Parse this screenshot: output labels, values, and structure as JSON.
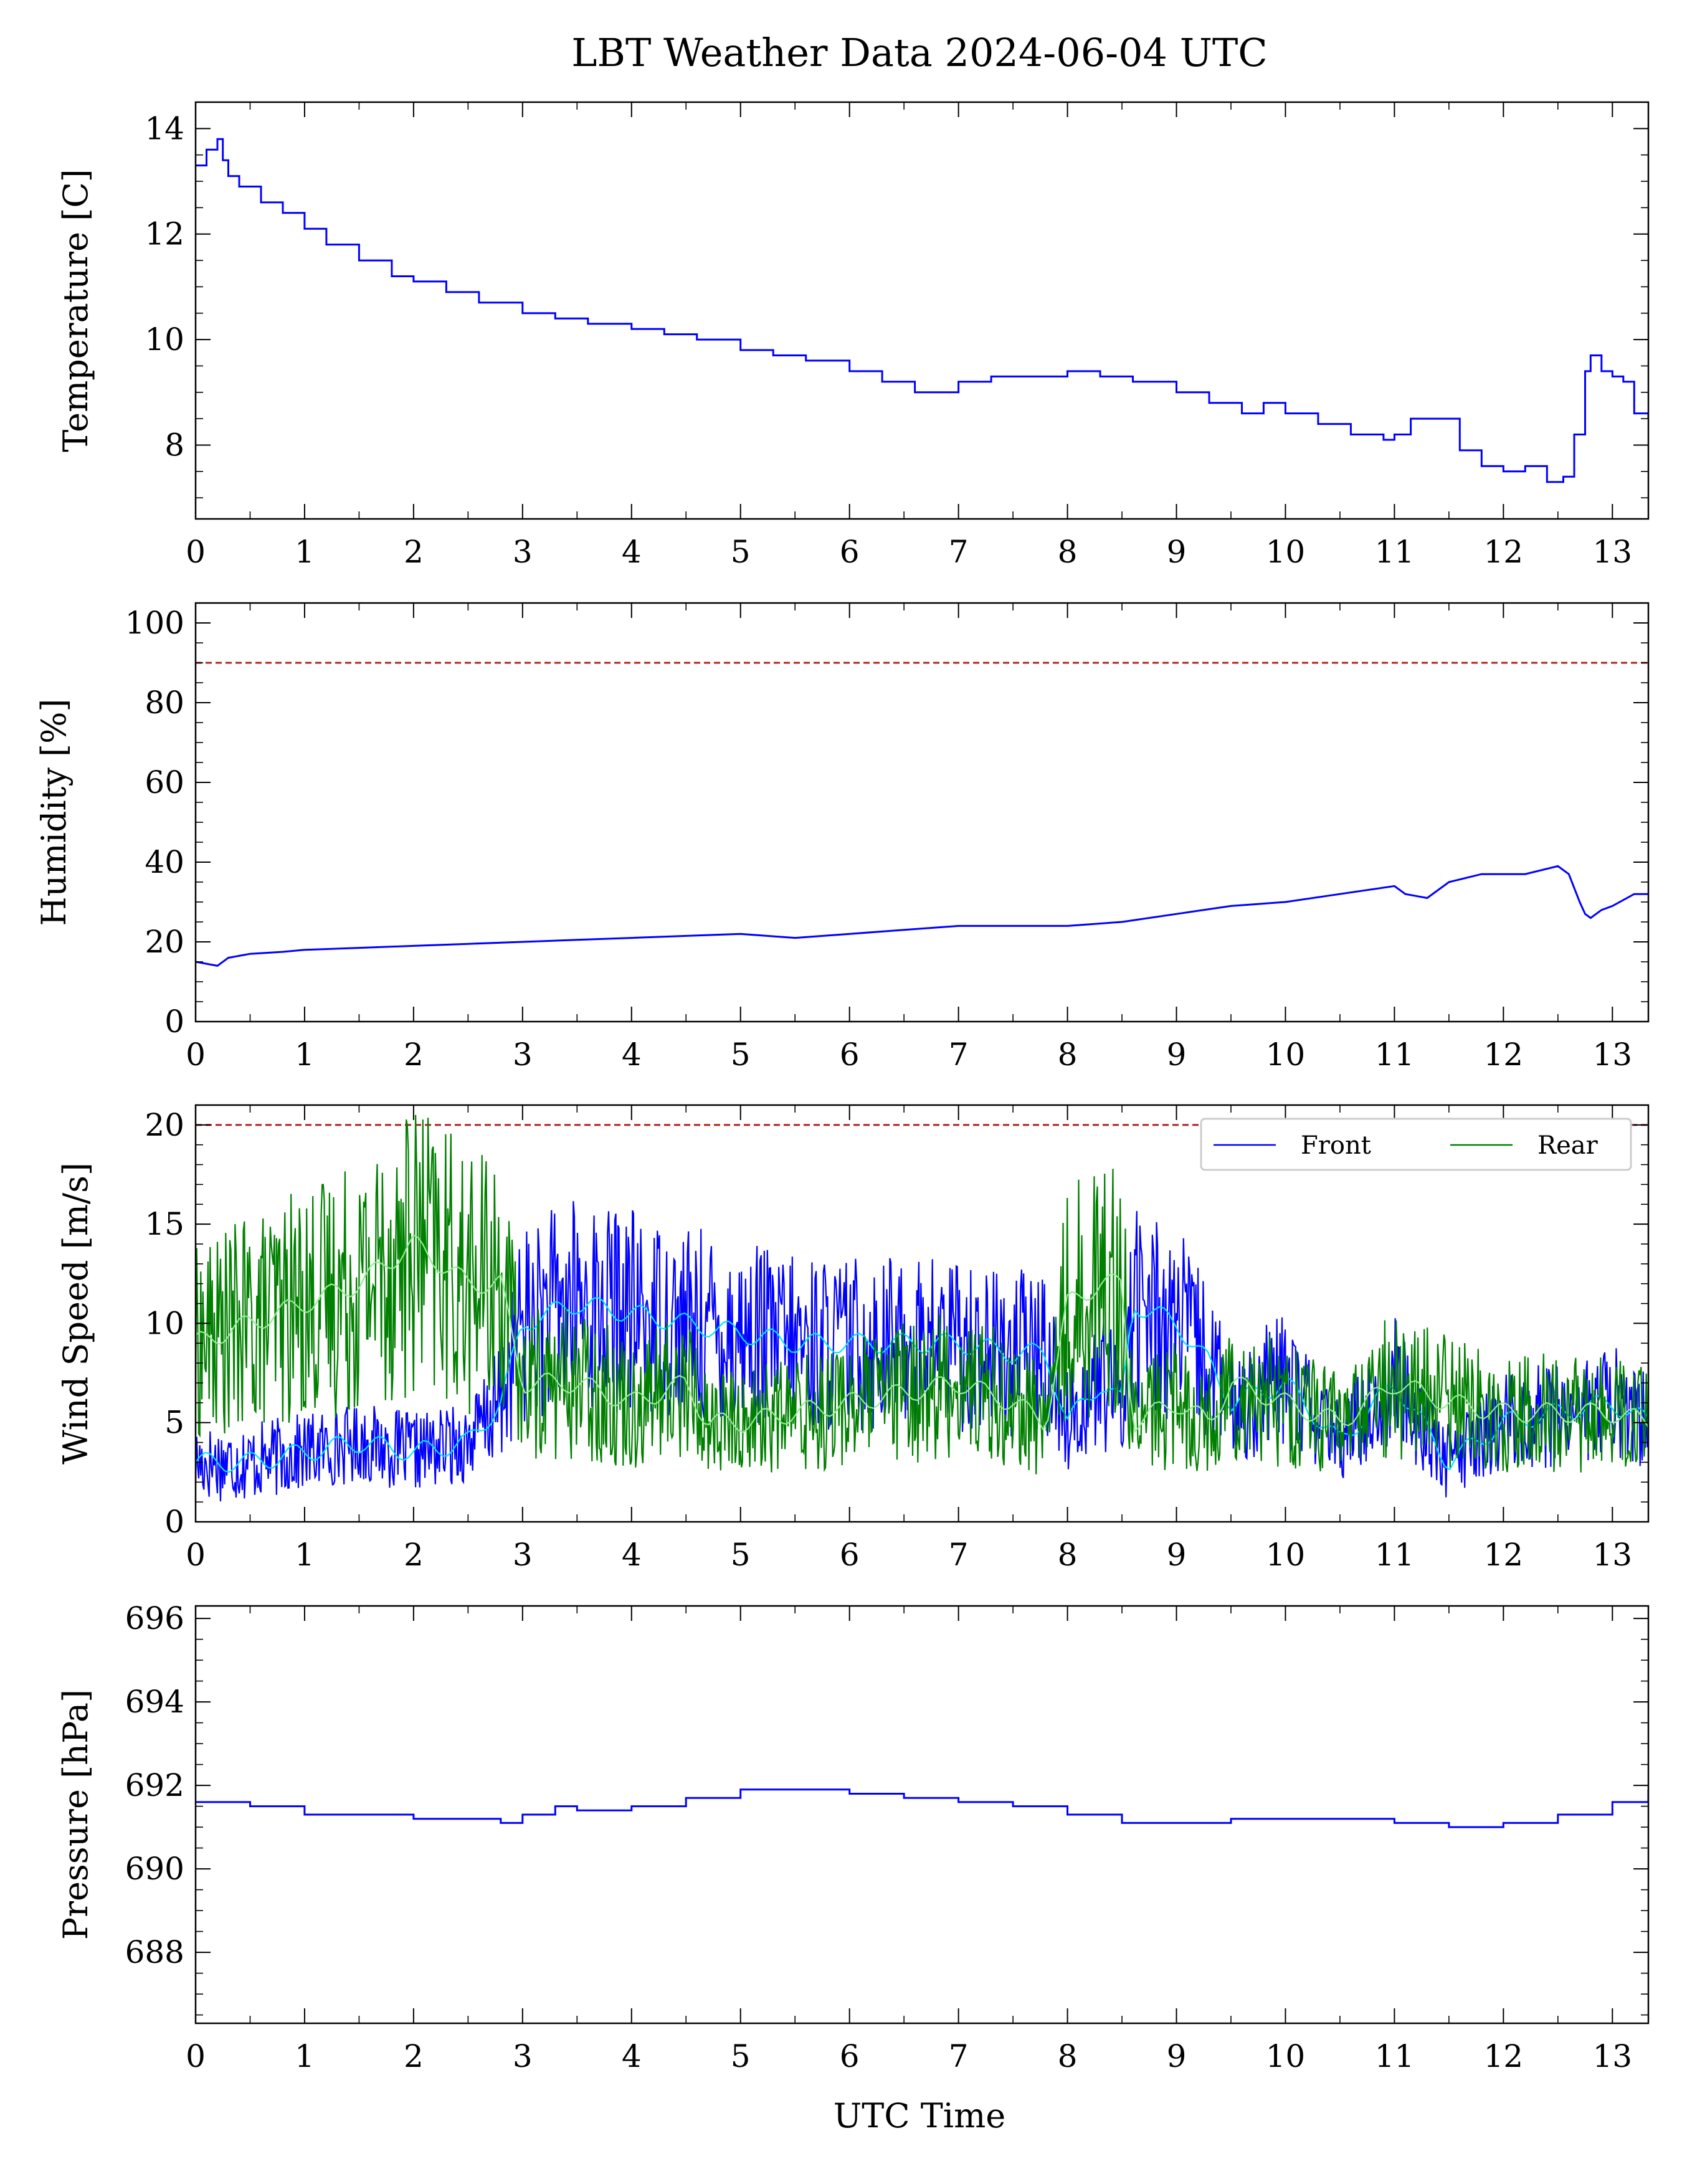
{
  "figure": {
    "title": "LBT Weather Data 2024-06-04 UTC",
    "xlabel": "UTC Time"
  },
  "colors": {
    "front": "#0000ff",
    "rear": "#008000",
    "front_smooth": "#00e5ff",
    "rear_smooth": "#90ee90",
    "threshold": "#b22222"
  },
  "chart_data": [
    {
      "type": "line",
      "ylabel": "Temperature [C]",
      "xlim": [
        0,
        13.33
      ],
      "ylim": [
        6.6,
        14.5
      ],
      "xticks": [
        0,
        1,
        2,
        3,
        4,
        5,
        6,
        7,
        8,
        9,
        10,
        11,
        12,
        13
      ],
      "yticks": [
        8,
        10,
        12,
        14
      ],
      "grid": false,
      "series": [
        {
          "key": "front",
          "step": true,
          "x": [
            0,
            0.1,
            0.2,
            0.25,
            0.3,
            0.4,
            0.6,
            0.8,
            1.0,
            1.2,
            1.5,
            1.8,
            2.0,
            2.3,
            2.6,
            3.0,
            3.3,
            3.6,
            4.0,
            4.3,
            4.6,
            5.0,
            5.3,
            5.6,
            6.0,
            6.3,
            6.6,
            6.8,
            7.0,
            7.3,
            7.6,
            8.0,
            8.3,
            8.6,
            9.0,
            9.3,
            9.6,
            9.8,
            10.0,
            10.3,
            10.6,
            10.9,
            11.0,
            11.15,
            11.3,
            11.6,
            11.8,
            12.0,
            12.2,
            12.4,
            12.55,
            12.65,
            12.75,
            12.8,
            12.9,
            13.0,
            13.1,
            13.2,
            13.33
          ],
          "values": [
            13.3,
            13.6,
            13.8,
            13.4,
            13.1,
            12.9,
            12.6,
            12.4,
            12.1,
            11.8,
            11.5,
            11.2,
            11.1,
            10.9,
            10.7,
            10.5,
            10.4,
            10.3,
            10.2,
            10.1,
            10.0,
            9.8,
            9.7,
            9.6,
            9.4,
            9.2,
            9.0,
            9.0,
            9.2,
            9.3,
            9.3,
            9.4,
            9.3,
            9.2,
            9.0,
            8.8,
            8.6,
            8.8,
            8.6,
            8.4,
            8.2,
            8.1,
            8.2,
            8.5,
            8.5,
            7.9,
            7.6,
            7.5,
            7.6,
            7.3,
            7.4,
            8.2,
            9.4,
            9.7,
            9.4,
            9.3,
            9.2,
            8.6,
            8.5
          ]
        }
      ]
    },
    {
      "type": "line",
      "ylabel": "Humidity [%]",
      "xlim": [
        0,
        13.33
      ],
      "ylim": [
        0,
        105
      ],
      "xticks": [
        0,
        1,
        2,
        3,
        4,
        5,
        6,
        7,
        8,
        9,
        10,
        11,
        12,
        13
      ],
      "yticks": [
        0,
        20,
        40,
        60,
        80,
        100
      ],
      "threshold": 90,
      "series": [
        {
          "key": "front",
          "x": [
            0,
            0.2,
            0.3,
            0.5,
            0.8,
            1.0,
            1.5,
            2.0,
            2.5,
            3.0,
            3.5,
            4.0,
            4.5,
            5.0,
            5.5,
            6.0,
            6.5,
            7.0,
            7.5,
            8.0,
            8.5,
            9.0,
            9.5,
            10.0,
            10.5,
            11.0,
            11.1,
            11.3,
            11.5,
            11.8,
            12.0,
            12.2,
            12.5,
            12.6,
            12.7,
            12.75,
            12.8,
            12.9,
            13.0,
            13.2,
            13.33
          ],
          "values": [
            15,
            14,
            16,
            17,
            17.5,
            18,
            18.5,
            19,
            19.5,
            20,
            20.5,
            21,
            21.5,
            22,
            21,
            22,
            23,
            24,
            24,
            24,
            25,
            27,
            29,
            30,
            32,
            34,
            32,
            31,
            35,
            37,
            37,
            37,
            39,
            37,
            30,
            27,
            26,
            28,
            29,
            32,
            32
          ]
        }
      ]
    },
    {
      "type": "line",
      "ylabel": "Wind Speed [m/s]",
      "xlim": [
        0,
        13.33
      ],
      "ylim": [
        0,
        21
      ],
      "xticks": [
        0,
        1,
        2,
        3,
        4,
        5,
        6,
        7,
        8,
        9,
        10,
        11,
        12,
        13
      ],
      "yticks": [
        0,
        5,
        10,
        15,
        20
      ],
      "threshold": 20,
      "legend": {
        "placement": "top-right"
      },
      "series": [
        {
          "key": "front",
          "name": "Front",
          "x": [
            0,
            0.5,
            1.0,
            1.5,
            2.0,
            2.5,
            2.8,
            3.0,
            3.5,
            4.0,
            4.5,
            5.0,
            5.5,
            6.0,
            6.5,
            7.0,
            7.5,
            7.8,
            8.0,
            8.3,
            8.5,
            8.6,
            9.0,
            9.3,
            9.5,
            10.0,
            10.5,
            11.0,
            11.5,
            12.0,
            12.5,
            13.0,
            13.33
          ],
          "values": [
            3,
            3,
            3.5,
            4,
            3.5,
            4,
            6,
            10,
            11,
            10.5,
            10,
            9.5,
            9,
            9,
            9,
            9,
            8.5,
            8.5,
            5,
            7,
            6,
            11,
            10,
            8,
            6,
            7,
            4,
            7,
            3,
            5,
            5.5,
            6,
            5
          ]
        },
        {
          "key": "rear",
          "name": "Rear",
          "x": [
            0,
            0.5,
            1.0,
            1.5,
            2.0,
            2.5,
            2.8,
            3.0,
            3.5,
            4.0,
            4.5,
            4.7,
            5.0,
            5.5,
            6.0,
            6.5,
            7.0,
            7.5,
            7.8,
            8.0,
            8.3,
            8.5,
            8.6,
            9.0,
            9.3,
            9.5,
            10.0,
            10.5,
            11.0,
            11.5,
            12.0,
            12.5,
            13.0,
            13.33
          ],
          "values": [
            9,
            10,
            11,
            12,
            14,
            12,
            12,
            7,
            7,
            6,
            7,
            5,
            5,
            5.5,
            6,
            6.5,
            7,
            6,
            5,
            11,
            12,
            12,
            5,
            6,
            5,
            7,
            6,
            5,
            7,
            6,
            5.5,
            5.5,
            5.5,
            5
          ]
        }
      ]
    },
    {
      "type": "line",
      "ylabel": "Pressure [hPa]",
      "xlim": [
        0,
        13.33
      ],
      "ylim": [
        686.3,
        696.3
      ],
      "xticks": [
        0,
        1,
        2,
        3,
        4,
        5,
        6,
        7,
        8,
        9,
        10,
        11,
        12,
        13
      ],
      "yticks": [
        688,
        690,
        692,
        694,
        696
      ],
      "series": [
        {
          "key": "front",
          "step": true,
          "x": [
            0,
            0.5,
            1.0,
            1.5,
            2.0,
            2.5,
            2.8,
            3.0,
            3.3,
            3.5,
            4.0,
            4.5,
            5.0,
            5.5,
            6.0,
            6.5,
            7.0,
            7.5,
            8.0,
            8.5,
            9.0,
            9.5,
            10.0,
            10.5,
            11.0,
            11.5,
            12.0,
            12.5,
            13.0,
            13.33
          ],
          "values": [
            691.6,
            691.5,
            691.3,
            691.3,
            691.2,
            691.2,
            691.1,
            691.3,
            691.5,
            691.4,
            691.5,
            691.7,
            691.9,
            691.9,
            691.8,
            691.7,
            691.6,
            691.5,
            691.3,
            691.1,
            691.1,
            691.2,
            691.2,
            691.2,
            691.1,
            691.0,
            691.1,
            691.3,
            691.6,
            691.9
          ]
        }
      ]
    }
  ]
}
